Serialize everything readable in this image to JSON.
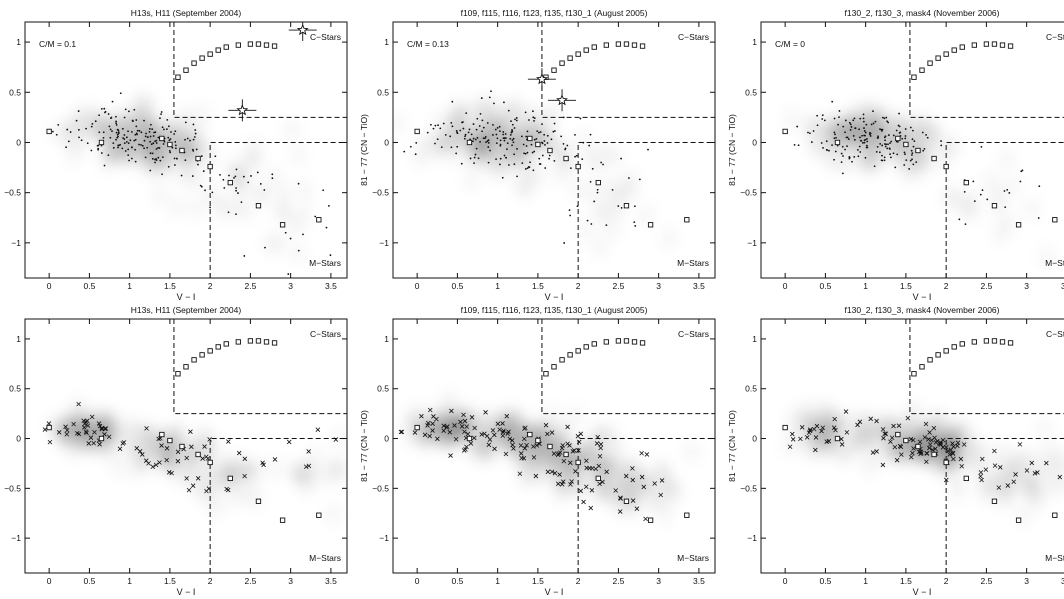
{
  "figure": {
    "background": "#ffffff",
    "ink": "#111111"
  },
  "reference_sequence": {
    "x": [
      0.0,
      1.4,
      1.6,
      1.7,
      1.8,
      1.9,
      2.0,
      2.1,
      2.2,
      2.35,
      2.5,
      2.6,
      2.7,
      2.8,
      0.65
    ],
    "y": [
      0.11,
      0.04,
      0.65,
      0.72,
      0.79,
      0.84,
      0.88,
      0.92,
      0.95,
      0.97,
      0.98,
      0.98,
      0.97,
      0.96,
      0.0
    ]
  },
  "reference_m_branch": {
    "x": [
      1.5,
      1.65,
      1.85,
      2.0,
      2.25,
      2.6,
      2.9,
      3.35
    ],
    "y": [
      -0.02,
      -0.08,
      -0.16,
      -0.24,
      -0.4,
      -0.63,
      -0.82,
      -0.77
    ]
  },
  "panels": [
    {
      "title": "H13s, H11 (September 2004)",
      "cm_label": "C/M = 0.1",
      "c_label": "C−Stars",
      "m_label": "M−Stars",
      "xlabel": "V − I",
      "ylabel": "",
      "xlim": [
        -0.3,
        3.7
      ],
      "ylim": [
        -1.35,
        1.2
      ],
      "xticks": [
        "0",
        "0.5",
        "1",
        "1.5",
        "2",
        "2.5",
        "3",
        "3.5"
      ],
      "yticks": [
        "1",
        "0.5",
        "0",
        "−0.5",
        "−1"
      ],
      "candidates": [
        {
          "x": 3.15,
          "y": 1.12
        },
        {
          "x": 2.4,
          "y": 0.32
        }
      ],
      "cloud": [
        {
          "x": 0.9,
          "y": 0.08,
          "sx": 0.35,
          "sy": 0.14,
          "w": 1.0
        },
        {
          "x": 1.4,
          "y": -0.05,
          "sx": 0.3,
          "sy": 0.12,
          "w": 0.6
        },
        {
          "x": 2.2,
          "y": -0.35,
          "sx": 0.3,
          "sy": 0.2,
          "w": 0.25
        },
        {
          "x": 3.0,
          "y": -0.8,
          "sx": 0.3,
          "sy": 0.25,
          "w": 0.12
        }
      ],
      "chart_data": {
        "type": "scatter",
        "title": "H13s, H11 (September 2004)",
        "xlabel": "V − I",
        "ylabel": "",
        "xlim": [
          -0.3,
          3.7
        ],
        "ylim": [
          -1.35,
          1.2
        ],
        "classification_boundaries": {
          "c_star_region": {
            "x_min": 1.55,
            "y_min": 0.25
          },
          "m_star_region": {
            "x_min": 2.0,
            "y_max": 0.0
          }
        },
        "series": [
          {
            "name": "",
            "marker": "dot",
            "density_peak": {
              "x": 0.9,
              "y": 0.08
            }
          }
        ]
      }
    },
    {
      "title": "f109, f115, f116, f123, f135, f130_1 (August 2005)",
      "cm_label": "C/M = 0.13",
      "c_label": "C−Stars",
      "m_label": "M−Stars",
      "xlabel": "V − I",
      "ylabel": "81 − 77  (CN − TiO)",
      "xlim": [
        -0.3,
        3.7
      ],
      "ylim": [
        -1.35,
        1.2
      ],
      "xticks": [
        "0",
        "0.5",
        "1",
        "1.5",
        "2",
        "2.5",
        "3",
        "3.5"
      ],
      "yticks": [
        "1",
        "0.5",
        "0",
        "−0.5",
        "−1"
      ],
      "candidates": [
        {
          "x": 1.55,
          "y": 0.63
        },
        {
          "x": 1.8,
          "y": 0.42
        }
      ],
      "cloud": [
        {
          "x": 0.85,
          "y": 0.08,
          "sx": 0.4,
          "sy": 0.15,
          "w": 1.0
        },
        {
          "x": 1.4,
          "y": -0.05,
          "sx": 0.35,
          "sy": 0.15,
          "w": 0.6
        },
        {
          "x": 2.3,
          "y": -0.55,
          "sx": 0.3,
          "sy": 0.3,
          "w": 0.2
        }
      ],
      "chart_data": {
        "type": "scatter",
        "title": "f109, f115, f116, f123, f135, f130_1 (August 2005)",
        "xlabel": "V − I",
        "ylabel": "81 − 77  (CN − TiO)",
        "xlim": [
          -0.3,
          3.7
        ],
        "ylim": [
          -1.35,
          1.2
        ],
        "classification_boundaries": {
          "c_star_region": {
            "x_min": 1.55,
            "y_min": 0.25
          },
          "m_star_region": {
            "x_min": 2.0,
            "y_max": 0.0
          }
        },
        "series": [
          {
            "name": "",
            "marker": "dot",
            "density_peak": {
              "x": 0.85,
              "y": 0.08
            }
          }
        ]
      }
    },
    {
      "title": "f130_2, f130_3, mask4 (November 2006)",
      "cm_label": "C/M = 0",
      "c_label": "C−Stars",
      "m_label": "M−Stars",
      "xlabel": "V − I",
      "ylabel": "81 − 77  (CN − TiO)",
      "xlim": [
        -0.3,
        3.7
      ],
      "ylim": [
        -1.35,
        1.2
      ],
      "xticks": [
        "0",
        "0.5",
        "1",
        "1.5",
        "2",
        "2.5",
        "3",
        "3.5"
      ],
      "yticks": [
        "1",
        "0.5",
        "0",
        "−0.5",
        "−1"
      ],
      "candidates": [],
      "cloud": [
        {
          "x": 0.9,
          "y": 0.08,
          "sx": 0.3,
          "sy": 0.12,
          "w": 1.0
        },
        {
          "x": 1.5,
          "y": -0.05,
          "sx": 0.3,
          "sy": 0.12,
          "w": 0.5
        },
        {
          "x": 2.7,
          "y": -0.6,
          "sx": 0.3,
          "sy": 0.25,
          "w": 0.15
        }
      ],
      "chart_data": {
        "type": "scatter",
        "title": "f130_2, f130_3, mask4 (November 2006)",
        "xlabel": "V − I",
        "ylabel": "81 − 77  (CN − TiO)",
        "xlim": [
          -0.3,
          3.7
        ],
        "ylim": [
          -1.35,
          1.2
        ],
        "classification_boundaries": {
          "c_star_region": {
            "x_min": 1.55,
            "y_min": 0.25
          },
          "m_star_region": {
            "x_min": 2.0,
            "y_max": 0.0
          }
        },
        "series": [
          {
            "name": "",
            "marker": "dot",
            "density_peak": {
              "x": 0.9,
              "y": 0.08
            }
          }
        ]
      }
    },
    {
      "title": "H13s, H11 (September 2004)",
      "cm_label": "",
      "c_label": "C−Stars",
      "m_label": "M−Stars",
      "xlabel": "V − I",
      "ylabel": "",
      "xlim": [
        -0.3,
        3.7
      ],
      "ylim": [
        -1.35,
        1.2
      ],
      "xticks": [
        "0",
        "0.5",
        "1",
        "1.5",
        "2",
        "2.5",
        "3",
        "3.5"
      ],
      "yticks": [
        "1",
        "0.5",
        "0",
        "−0.5",
        "−1"
      ],
      "candidates": [],
      "cloud": [
        {
          "x": 0.5,
          "y": 0.08,
          "sx": 0.2,
          "sy": 0.1,
          "w": 0.8
        },
        {
          "x": 1.5,
          "y": -0.1,
          "sx": 0.3,
          "sy": 0.12,
          "w": 0.6
        },
        {
          "x": 2.2,
          "y": -0.35,
          "sx": 0.3,
          "sy": 0.15,
          "w": 0.35
        },
        {
          "x": 3.3,
          "y": -0.3,
          "sx": 0.2,
          "sy": 0.15,
          "w": 0.15
        }
      ],
      "chart_data": {
        "type": "scatter",
        "title": "H13s, H11 (September 2004)",
        "xlabel": "V − I",
        "ylabel": "",
        "xlim": [
          -0.3,
          3.7
        ],
        "ylim": [
          -1.35,
          1.2
        ],
        "classification_boundaries": {
          "c_star_region": {
            "x_min": 1.55,
            "y_min": 0.25
          },
          "m_star_region": {
            "x_min": 2.0,
            "y_max": 0.0
          }
        },
        "series": [
          {
            "name": "",
            "marker": "cross",
            "trend": "decreasing from (0.2, 0.1) to (3.5, -0.3)"
          }
        ]
      }
    },
    {
      "title": "f109, f115, f116, f123, f135, f130_1 (August 2005)",
      "cm_label": "",
      "c_label": "C−Stars",
      "m_label": "M−Stars",
      "xlabel": "V − I",
      "ylabel": "81 − 77  (CN − TiO)",
      "xlim": [
        -0.3,
        3.7
      ],
      "ylim": [
        -1.35,
        1.2
      ],
      "xticks": [
        "0",
        "0.5",
        "1",
        "1.5",
        "2",
        "2.5",
        "3",
        "3.5"
      ],
      "yticks": [
        "1",
        "0.5",
        "0",
        "−0.5",
        "−1"
      ],
      "candidates": [],
      "cloud": [
        {
          "x": 0.4,
          "y": 0.1,
          "sx": 0.25,
          "sy": 0.08,
          "w": 0.8
        },
        {
          "x": 1.2,
          "y": 0.0,
          "sx": 0.3,
          "sy": 0.1,
          "w": 0.9
        },
        {
          "x": 1.9,
          "y": -0.2,
          "sx": 0.3,
          "sy": 0.15,
          "w": 1.0
        },
        {
          "x": 2.6,
          "y": -0.45,
          "sx": 0.3,
          "sy": 0.15,
          "w": 0.5
        }
      ],
      "chart_data": {
        "type": "scatter",
        "title": "f109, f115, f116, f123, f135, f130_1 (August 2005)",
        "xlabel": "V − I",
        "ylabel": "81 − 77  (CN − TiO)",
        "xlim": [
          -0.3,
          3.7
        ],
        "ylim": [
          -1.35,
          1.2
        ],
        "classification_boundaries": {
          "c_star_region": {
            "x_min": 1.55,
            "y_min": 0.25
          },
          "m_star_region": {
            "x_min": 2.0,
            "y_max": 0.0
          }
        },
        "series": [
          {
            "name": "",
            "marker": "cross",
            "trend": "decreasing from (0.2, 0.1) to (3.0, -0.6)"
          }
        ]
      }
    },
    {
      "title": "f130_2, f130_3, mask4 (November 2006)",
      "cm_label": "",
      "c_label": "C−Stars",
      "m_label": "M−Stars",
      "xlabel": "V − I",
      "ylabel": "81 − 77  (CN − TiO)",
      "xlim": [
        -0.3,
        3.7
      ],
      "ylim": [
        -1.35,
        1.2
      ],
      "xticks": [
        "0",
        "0.5",
        "1",
        "1.5",
        "2",
        "2.5",
        "3",
        "3.5"
      ],
      "yticks": [
        "1",
        "0.5",
        "0",
        "−0.5",
        "−1"
      ],
      "candidates": [],
      "cloud": [
        {
          "x": 0.4,
          "y": 0.05,
          "sx": 0.2,
          "sy": 0.1,
          "w": 0.5
        },
        {
          "x": 1.3,
          "y": 0.0,
          "sx": 0.3,
          "sy": 0.12,
          "w": 0.6
        },
        {
          "x": 1.9,
          "y": -0.1,
          "sx": 0.2,
          "sy": 0.1,
          "w": 1.0
        },
        {
          "x": 2.8,
          "y": -0.4,
          "sx": 0.35,
          "sy": 0.15,
          "w": 0.45
        }
      ],
      "chart_data": {
        "type": "scatter",
        "title": "f130_2, f130_3, mask4 (November 2006)",
        "xlabel": "V − I",
        "ylabel": "81 − 77  (CN − TiO)",
        "xlim": [
          -0.3,
          3.7
        ],
        "ylim": [
          -1.35,
          1.2
        ],
        "classification_boundaries": {
          "c_star_region": {
            "x_min": 1.55,
            "y_min": 0.25
          },
          "m_star_region": {
            "x_min": 2.0,
            "y_max": 0.0
          }
        },
        "series": [
          {
            "name": "",
            "marker": "cross",
            "density_peak": {
              "x": 1.9,
              "y": -0.1
            }
          }
        ]
      }
    }
  ]
}
